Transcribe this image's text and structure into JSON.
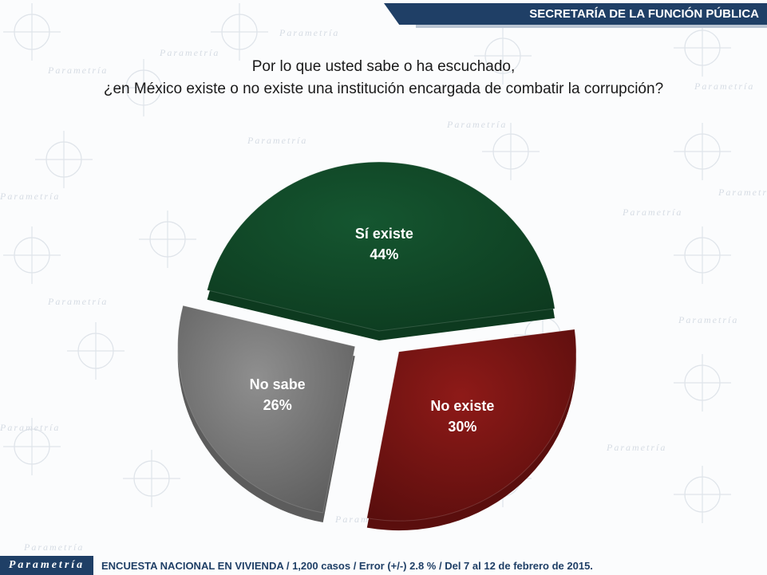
{
  "header": {
    "org": "SECRETARÍA DE LA FUNCIÓN PÚBLICA"
  },
  "question": {
    "line1": "Por lo que usted sabe o ha escuchado,",
    "line2": "¿en México existe o no existe una institución encargada de combatir la corrupción?"
  },
  "watermark": {
    "text": "Parametría"
  },
  "chart_data": {
    "type": "pie",
    "title": "",
    "slices": [
      {
        "label": "Sí existe",
        "value": 44,
        "display": "44%",
        "color": "#155630",
        "side": "#0d3a1f",
        "exploded": false
      },
      {
        "label": "No existe",
        "value": 30,
        "display": "30%",
        "color": "#8e1a18",
        "side": "#5a0e0d",
        "exploded": true
      },
      {
        "label": "No sabe",
        "value": 26,
        "display": "26%",
        "color": "#8f8f8f",
        "side": "#5c5c5c",
        "exploded": true
      }
    ]
  },
  "footer": {
    "brand": "Parametría",
    "note": "ENCUESTA NACIONAL EN VIVIENDA / 1,200 casos / Error (+/-) 2.8 % / Del 7 al 12 de febrero de 2015."
  }
}
